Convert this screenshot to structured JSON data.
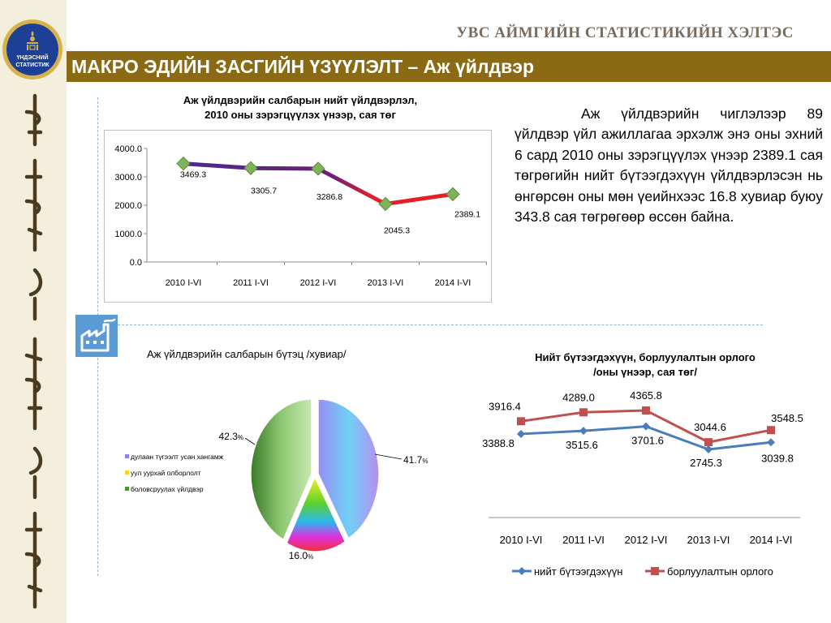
{
  "header": {
    "org_name": "УВС АЙМГИЙН СТАТИСТИКИЙН ХЭЛТЭС",
    "title": "МАКРО ЭДИЙН ЗАСГИЙН ҮЗҮҮЛЭЛТ – Аж үйлдвэр",
    "logo_text_1": "ҮНДЭСНИЙ",
    "logo_text_2": "СТАТИСТИК",
    "colors": {
      "title_bar": "#8a6a13",
      "left_strip": "#f4efdc"
    }
  },
  "description": "Аж үйлдвэрийн чиглэлээр 89 үйлдвэр үйл ажиллагаа эрхэлж энэ оны эхний 6 сард 2010 оны зэрэгцүүлэх үнээр 2389.1 сая төгрөгийн нийт бүтээгдэхүүн үйлдвэрлэсэн нь өнгөрсөн оны мөн үеийнхээс 16.8 хувиар буюу 343.8 сая төгрөгөөр өссөн байна.",
  "chart_data": [
    {
      "type": "line",
      "title_line1": "Аж үйлдвэрийн салбарын нийт үйлдвэрлэл,",
      "title_line2": "2010 оны зэрэгцүүлэх үнээр, сая төг",
      "categories": [
        "2010 I-VI",
        "2011 I-VI",
        "2012 I-VI",
        "2013 I-VI",
        "2014 I-VI"
      ],
      "values": [
        3469.3,
        3305.7,
        3286.8,
        2045.3,
        2389.1
      ],
      "value_labels": [
        "3469.3",
        "3305.7",
        "3286.8",
        "2045.3",
        "2389.1"
      ],
      "ylim": [
        0,
        4000
      ],
      "yticks": [
        "0.0",
        "1000.0",
        "2000.0",
        "3000.0",
        "4000.0"
      ],
      "grid": false
    },
    {
      "type": "pie",
      "title": "Аж үйлдвэрийн салбарын бүтэц /хувиар/",
      "slices": [
        {
          "label": "дулаан түгээлт усан хангамж",
          "value": 41.7,
          "display": "41.7",
          "unit": "%",
          "color": "#8d7ff0"
        },
        {
          "label": "уул уурхай олборлолт",
          "value": 16.0,
          "display": "16.0",
          "unit": "%",
          "color": "#f7d02a"
        },
        {
          "label": "боловсруулах үйлдвэр",
          "value": 42.3,
          "display": "42.3",
          "unit": "%",
          "color": "#4f8c3c"
        }
      ],
      "legend_position": "left"
    },
    {
      "type": "line",
      "title_line1": "Нийт бүтээгдэхүүн, борлуулалтын орлого",
      "title_line2": "/оны үнээр, сая төг/",
      "categories": [
        "2010 I-VI",
        "2011 I-VI",
        "2012 I-VI",
        "2013 I-VI",
        "2014 I-VI"
      ],
      "series": [
        {
          "name": "нийт бүтээгдэхүүн",
          "values": [
            3388.8,
            3515.6,
            3701.6,
            2745.3,
            3039.8
          ],
          "labels": [
            "3388.8",
            "3515.6",
            "3701.6",
            "2745.3",
            "3039.8"
          ],
          "color": "#4a7ebb"
        },
        {
          "name": "борлуулалтын орлого",
          "values": [
            3916.4,
            4289.0,
            4365.8,
            3044.6,
            3548.5
          ],
          "labels": [
            "3916.4",
            "4289.0",
            "4365.8",
            "3044.6",
            "3548.5"
          ],
          "color": "#c0504d"
        }
      ],
      "legend_position": "bottom",
      "grid": false
    }
  ]
}
